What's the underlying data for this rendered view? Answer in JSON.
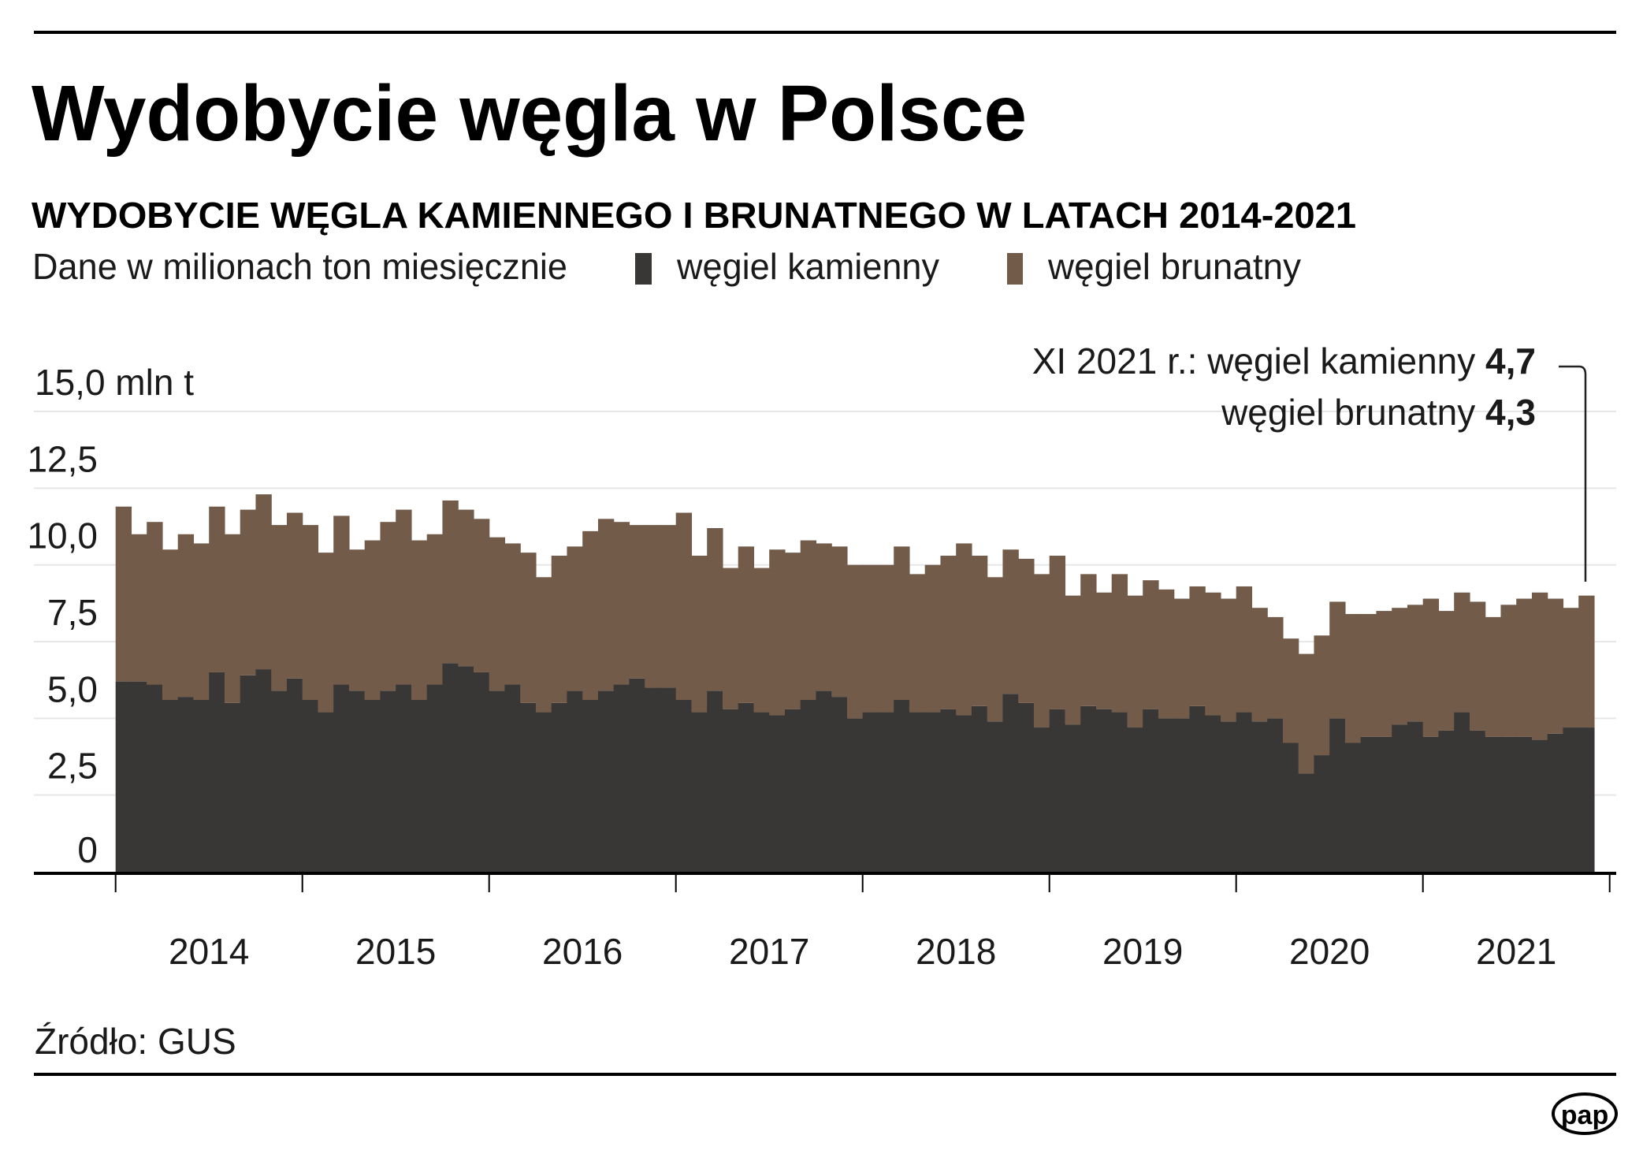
{
  "header": {
    "title": "Wydobycie węgla w Polsce",
    "subtitle": "WYDOBYCIE WĘGLA KAMIENNEGO I BRUNATNEGO W LATACH 2014-2021",
    "unit_note": "Dane w milionach ton miesięcznie"
  },
  "legend": [
    {
      "label": "węgiel kamienny",
      "color": "#383735"
    },
    {
      "label": "węgiel brunatny",
      "color": "#735b4a"
    }
  ],
  "annotation": {
    "line1_text": "XI 2021 r.: węgiel kamienny ",
    "line1_value": "4,7",
    "line2_text": "węgiel brunatny ",
    "line2_value": "4,3"
  },
  "footer": {
    "source": "Źródło: GUS",
    "logo": "pap"
  },
  "chart_data": {
    "type": "bar",
    "stacked": true,
    "title": "WYDOBYCIE WĘGLA KAMIENNEGO I BRUNATNEGO W LATACH 2014-2021",
    "ylabel": "Dane w milionach ton miesięcznie",
    "ylim": [
      0,
      15
    ],
    "y_ticks": [
      {
        "value": 15,
        "label": "15,0 mln t"
      },
      {
        "value": 12.5,
        "label": "12,5"
      },
      {
        "value": 10,
        "label": "10,0"
      },
      {
        "value": 7.5,
        "label": "7,5"
      },
      {
        "value": 5,
        "label": "5,0"
      },
      {
        "value": 2.5,
        "label": "2,5"
      },
      {
        "value": 0,
        "label": "0"
      }
    ],
    "x_tick_labels": [
      "2014",
      "2015",
      "2016",
      "2017",
      "2018",
      "2019",
      "2020",
      "2021"
    ],
    "grid": true,
    "legend_position": "top",
    "categories": [
      "2014-01",
      "2014-02",
      "2014-03",
      "2014-04",
      "2014-05",
      "2014-06",
      "2014-07",
      "2014-08",
      "2014-09",
      "2014-10",
      "2014-11",
      "2014-12",
      "2015-01",
      "2015-02",
      "2015-03",
      "2015-04",
      "2015-05",
      "2015-06",
      "2015-07",
      "2015-08",
      "2015-09",
      "2015-10",
      "2015-11",
      "2015-12",
      "2016-01",
      "2016-02",
      "2016-03",
      "2016-04",
      "2016-05",
      "2016-06",
      "2016-07",
      "2016-08",
      "2016-09",
      "2016-10",
      "2016-11",
      "2016-12",
      "2017-01",
      "2017-02",
      "2017-03",
      "2017-04",
      "2017-05",
      "2017-06",
      "2017-07",
      "2017-08",
      "2017-09",
      "2017-10",
      "2017-11",
      "2017-12",
      "2018-01",
      "2018-02",
      "2018-03",
      "2018-04",
      "2018-05",
      "2018-06",
      "2018-07",
      "2018-08",
      "2018-09",
      "2018-10",
      "2018-11",
      "2018-12",
      "2019-01",
      "2019-02",
      "2019-03",
      "2019-04",
      "2019-05",
      "2019-06",
      "2019-07",
      "2019-08",
      "2019-09",
      "2019-10",
      "2019-11",
      "2019-12",
      "2020-01",
      "2020-02",
      "2020-03",
      "2020-04",
      "2020-05",
      "2020-06",
      "2020-07",
      "2020-08",
      "2020-09",
      "2020-10",
      "2020-11",
      "2020-12",
      "2021-01",
      "2021-02",
      "2021-03",
      "2021-04",
      "2021-05",
      "2021-06",
      "2021-07",
      "2021-08",
      "2021-09",
      "2021-10",
      "2021-11"
    ],
    "series": [
      {
        "name": "węgiel kamienny",
        "color": "#383735",
        "values": [
          6.2,
          6.2,
          6.1,
          5.6,
          5.7,
          5.6,
          6.5,
          5.5,
          6.4,
          6.6,
          5.9,
          6.3,
          5.6,
          5.2,
          6.1,
          5.9,
          5.6,
          5.9,
          6.1,
          5.6,
          6.1,
          6.8,
          6.7,
          6.5,
          5.9,
          6.1,
          5.5,
          5.2,
          5.5,
          5.9,
          5.6,
          5.9,
          6.1,
          6.3,
          6.0,
          6.0,
          5.6,
          5.2,
          5.9,
          5.3,
          5.5,
          5.2,
          5.1,
          5.3,
          5.6,
          5.9,
          5.7,
          5.0,
          5.2,
          5.2,
          5.6,
          5.2,
          5.2,
          5.3,
          5.1,
          5.4,
          4.9,
          5.8,
          5.5,
          4.7,
          5.3,
          4.8,
          5.4,
          5.3,
          5.2,
          4.7,
          5.3,
          5.0,
          5.0,
          5.4,
          5.1,
          4.9,
          5.2,
          4.9,
          5.0,
          4.2,
          3.2,
          3.8,
          5.0,
          4.2,
          4.4,
          4.4,
          4.8,
          4.9,
          4.4,
          4.6,
          5.2,
          4.6,
          4.4,
          4.4,
          4.4,
          4.3,
          4.5,
          4.7,
          4.7
        ]
      },
      {
        "name": "węgiel brunatny",
        "color": "#735b4a",
        "values": [
          5.7,
          4.8,
          5.3,
          4.9,
          5.3,
          5.1,
          5.4,
          5.5,
          5.4,
          5.7,
          5.4,
          5.4,
          5.7,
          5.2,
          5.5,
          4.6,
          5.2,
          5.5,
          5.7,
          5.2,
          4.9,
          5.3,
          5.1,
          5.0,
          5.0,
          4.6,
          4.9,
          4.4,
          4.8,
          4.7,
          5.5,
          5.6,
          5.3,
          5.0,
          5.3,
          5.3,
          6.1,
          5.1,
          5.3,
          4.6,
          5.1,
          4.7,
          5.4,
          5.1,
          5.2,
          4.8,
          4.9,
          5.0,
          4.8,
          4.8,
          5.0,
          4.5,
          4.8,
          5.0,
          5.6,
          4.9,
          4.7,
          4.7,
          4.7,
          5.0,
          5.0,
          4.2,
          4.3,
          3.8,
          4.5,
          4.3,
          4.2,
          4.2,
          3.9,
          3.9,
          4.0,
          4.0,
          4.1,
          3.7,
          3.3,
          3.4,
          3.9,
          3.9,
          3.8,
          4.2,
          4.0,
          4.1,
          3.8,
          3.8,
          4.5,
          3.9,
          3.9,
          4.2,
          3.9,
          4.3,
          4.5,
          4.8,
          4.4,
          3.9,
          4.3
        ]
      }
    ]
  }
}
